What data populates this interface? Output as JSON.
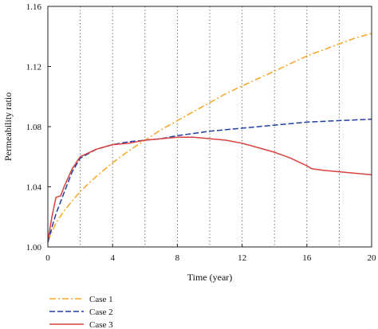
{
  "chart_data": {
    "type": "line",
    "xlabel": "Time (year)",
    "ylabel": "Permeability ratio",
    "xlim": [
      0,
      20
    ],
    "ylim": [
      1.0,
      1.16
    ],
    "x_ticks": [
      0,
      4,
      8,
      12,
      16,
      20
    ],
    "x_tick_labels": [
      "0",
      "4",
      "8",
      "12",
      "16",
      "20"
    ],
    "y_ticks": [
      1.0,
      1.04,
      1.08,
      1.12,
      1.16
    ],
    "y_tick_labels": [
      "1.00",
      "1.04",
      "1.08",
      "1.12",
      "1.16"
    ],
    "vertical_gridlines_x": [
      2,
      4,
      6,
      8,
      10,
      12,
      14,
      16,
      18
    ],
    "grid": "dotted vertical",
    "legend_position": "bottom-left, below plot",
    "series": [
      {
        "name": "Case 1",
        "color": "#F5A623",
        "dash": "dash-dot",
        "x": [
          0,
          0.5,
          1,
          2,
          3,
          4,
          5,
          6,
          7,
          8,
          9,
          10,
          11,
          12,
          13,
          14,
          15,
          16,
          17,
          18,
          19,
          20
        ],
        "y": [
          1.004,
          1.016,
          1.024,
          1.037,
          1.047,
          1.056,
          1.064,
          1.071,
          1.078,
          1.084,
          1.09,
          1.096,
          1.102,
          1.107,
          1.112,
          1.117,
          1.122,
          1.127,
          1.131,
          1.135,
          1.139,
          1.142
        ]
      },
      {
        "name": "Case 2",
        "color": "#1F3FA3",
        "dash": "dashed",
        "x": [
          0,
          0.25,
          0.5,
          1,
          1.5,
          2,
          3,
          4,
          5,
          6,
          7,
          8,
          10,
          12,
          14,
          16,
          18,
          20
        ],
        "y": [
          1.003,
          1.013,
          1.022,
          1.036,
          1.05,
          1.059,
          1.065,
          1.068,
          1.07,
          1.071,
          1.072,
          1.074,
          1.077,
          1.079,
          1.081,
          1.083,
          1.084,
          1.085
        ]
      },
      {
        "name": "Case 3",
        "color": "#D9413E",
        "dash": "solid",
        "x": [
          0,
          0.25,
          0.5,
          0.8,
          1,
          1.5,
          2,
          3,
          4,
          5,
          6,
          7,
          8,
          9,
          10,
          11,
          12,
          13,
          14,
          15,
          16,
          16.3,
          17,
          18,
          19,
          20
        ],
        "y": [
          1.004,
          1.02,
          1.033,
          1.034,
          1.04,
          1.052,
          1.06,
          1.065,
          1.068,
          1.069,
          1.071,
          1.072,
          1.073,
          1.073,
          1.072,
          1.071,
          1.069,
          1.066,
          1.063,
          1.059,
          1.054,
          1.052,
          1.051,
          1.05,
          1.049,
          1.048
        ]
      }
    ]
  }
}
